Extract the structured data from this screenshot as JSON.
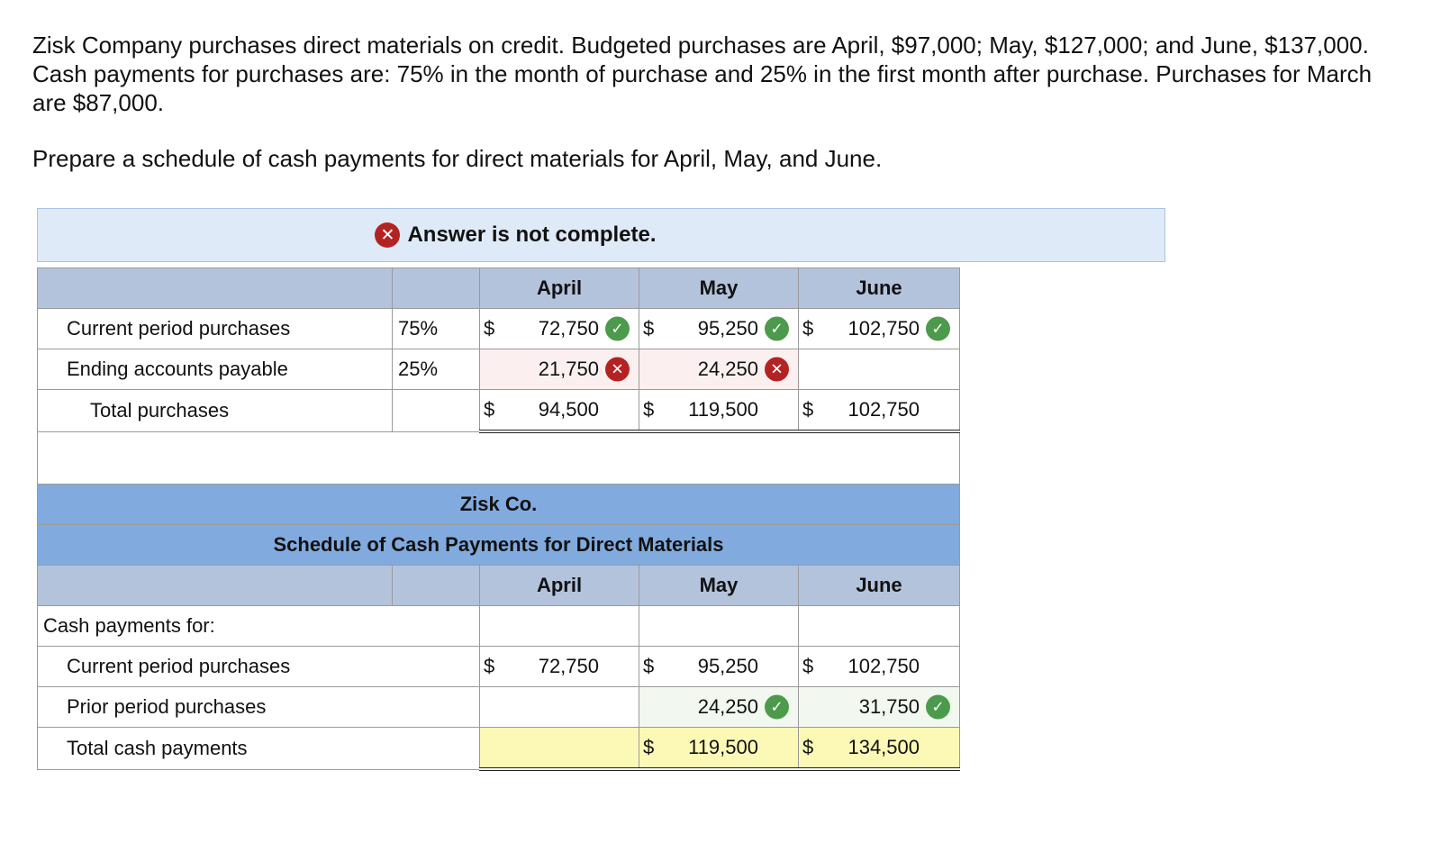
{
  "problem": {
    "text": "Zisk Company purchases direct materials on credit. Budgeted purchases are April, $97,000; May, $127,000; and June, $137,000. Cash payments for purchases are: 75% in the month of purchase and 25% in the first month after purchase. Purchases for March are $87,000.",
    "instruction": "Prepare a schedule of cash payments for direct materials for April, May, and June."
  },
  "banner": {
    "text": "Answer is not complete.",
    "icon": "x-circle-icon"
  },
  "top_table": {
    "months": [
      "April",
      "May",
      "June"
    ],
    "rows": [
      {
        "label": "Current period purchases",
        "pct": "75%",
        "currency": [
          "$",
          "$",
          "$"
        ],
        "values": [
          "72,750",
          "95,250",
          "102,750"
        ],
        "status": [
          "correct",
          "correct",
          "correct"
        ]
      },
      {
        "label": "Ending accounts payable",
        "pct": "25%",
        "currency": [
          "",
          "",
          ""
        ],
        "values": [
          "21,750",
          "24,250",
          ""
        ],
        "status": [
          "incorrect",
          "incorrect",
          ""
        ]
      },
      {
        "label": "Total purchases",
        "pct": "",
        "currency": [
          "$",
          "$",
          "$"
        ],
        "values": [
          "94,500",
          "119,500",
          "102,750"
        ],
        "status": [
          "",
          "",
          ""
        ]
      }
    ]
  },
  "schedule": {
    "company": "Zisk Co.",
    "title": "Schedule of Cash Payments for Direct Materials",
    "months": [
      "April",
      "May",
      "June"
    ],
    "section_label": "Cash payments for:",
    "rows": [
      {
        "label": "Current period purchases",
        "currency": [
          "$",
          "$",
          "$"
        ],
        "values": [
          "72,750",
          "95,250",
          "102,750"
        ],
        "status": [
          "",
          "",
          ""
        ]
      },
      {
        "label": "Prior period purchases",
        "currency": [
          "",
          "",
          ""
        ],
        "values": [
          "",
          "24,250",
          "31,750"
        ],
        "status": [
          "",
          "correct",
          "correct"
        ]
      },
      {
        "label": "Total cash payments",
        "currency": [
          "",
          "$",
          "$"
        ],
        "values": [
          "",
          "119,500",
          "134,500"
        ],
        "status": [
          "",
          "",
          ""
        ]
      }
    ]
  },
  "colors": {
    "header": "#b3c3db",
    "title": "#81abdf",
    "correct": "#4c9a4c",
    "incorrect": "#b42323",
    "banner": "#deeaf7",
    "total_highlight": "#fcf9b7"
  }
}
